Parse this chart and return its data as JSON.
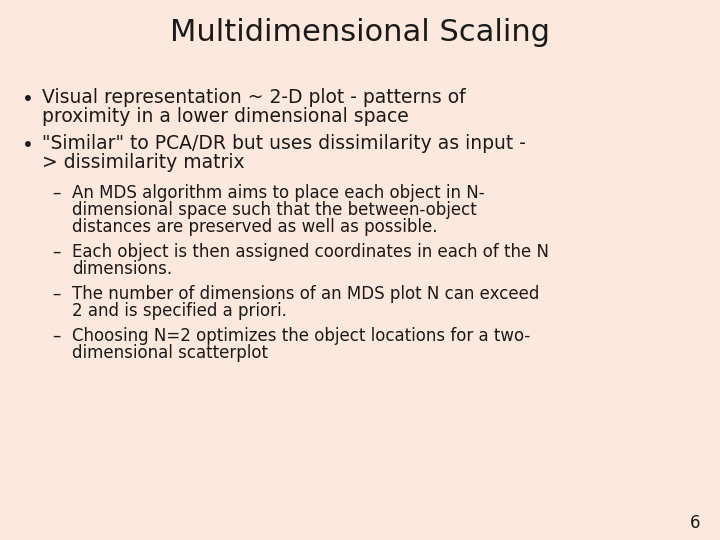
{
  "title": "Multidimensional Scaling",
  "background_color": "#fce8dc",
  "title_fontsize": 22,
  "title_color": "#1a1a1a",
  "text_color": "#1a1a1a",
  "bullet1_line1": "Visual representation ~ 2-D plot - patterns of",
  "bullet1_line2": "proximity in a lower dimensional space",
  "bullet2_line1": "\"Similar\" to PCA/DR but uses dissimilarity as input -",
  "bullet2_line2": "> dissimilarity matrix",
  "sub1_line1": "An MDS algorithm aims to place each object in N-",
  "sub1_line2": "dimensional space such that the between-object",
  "sub1_line3": "distances are preserved as well as possible.",
  "sub2_line1": "Each object is then assigned coordinates in each of the N",
  "sub2_line2": "dimensions.",
  "sub3_line1": "The number of dimensions of an MDS plot N can exceed",
  "sub3_line2": "2 and is specified a priori.",
  "sub4_line1": "Choosing N=2 optimizes the object locations for a two-",
  "sub4_line2": "dimensional scatterplot",
  "page_number": "6",
  "bullet_fontsize": 13.5,
  "sub_fontsize": 12
}
